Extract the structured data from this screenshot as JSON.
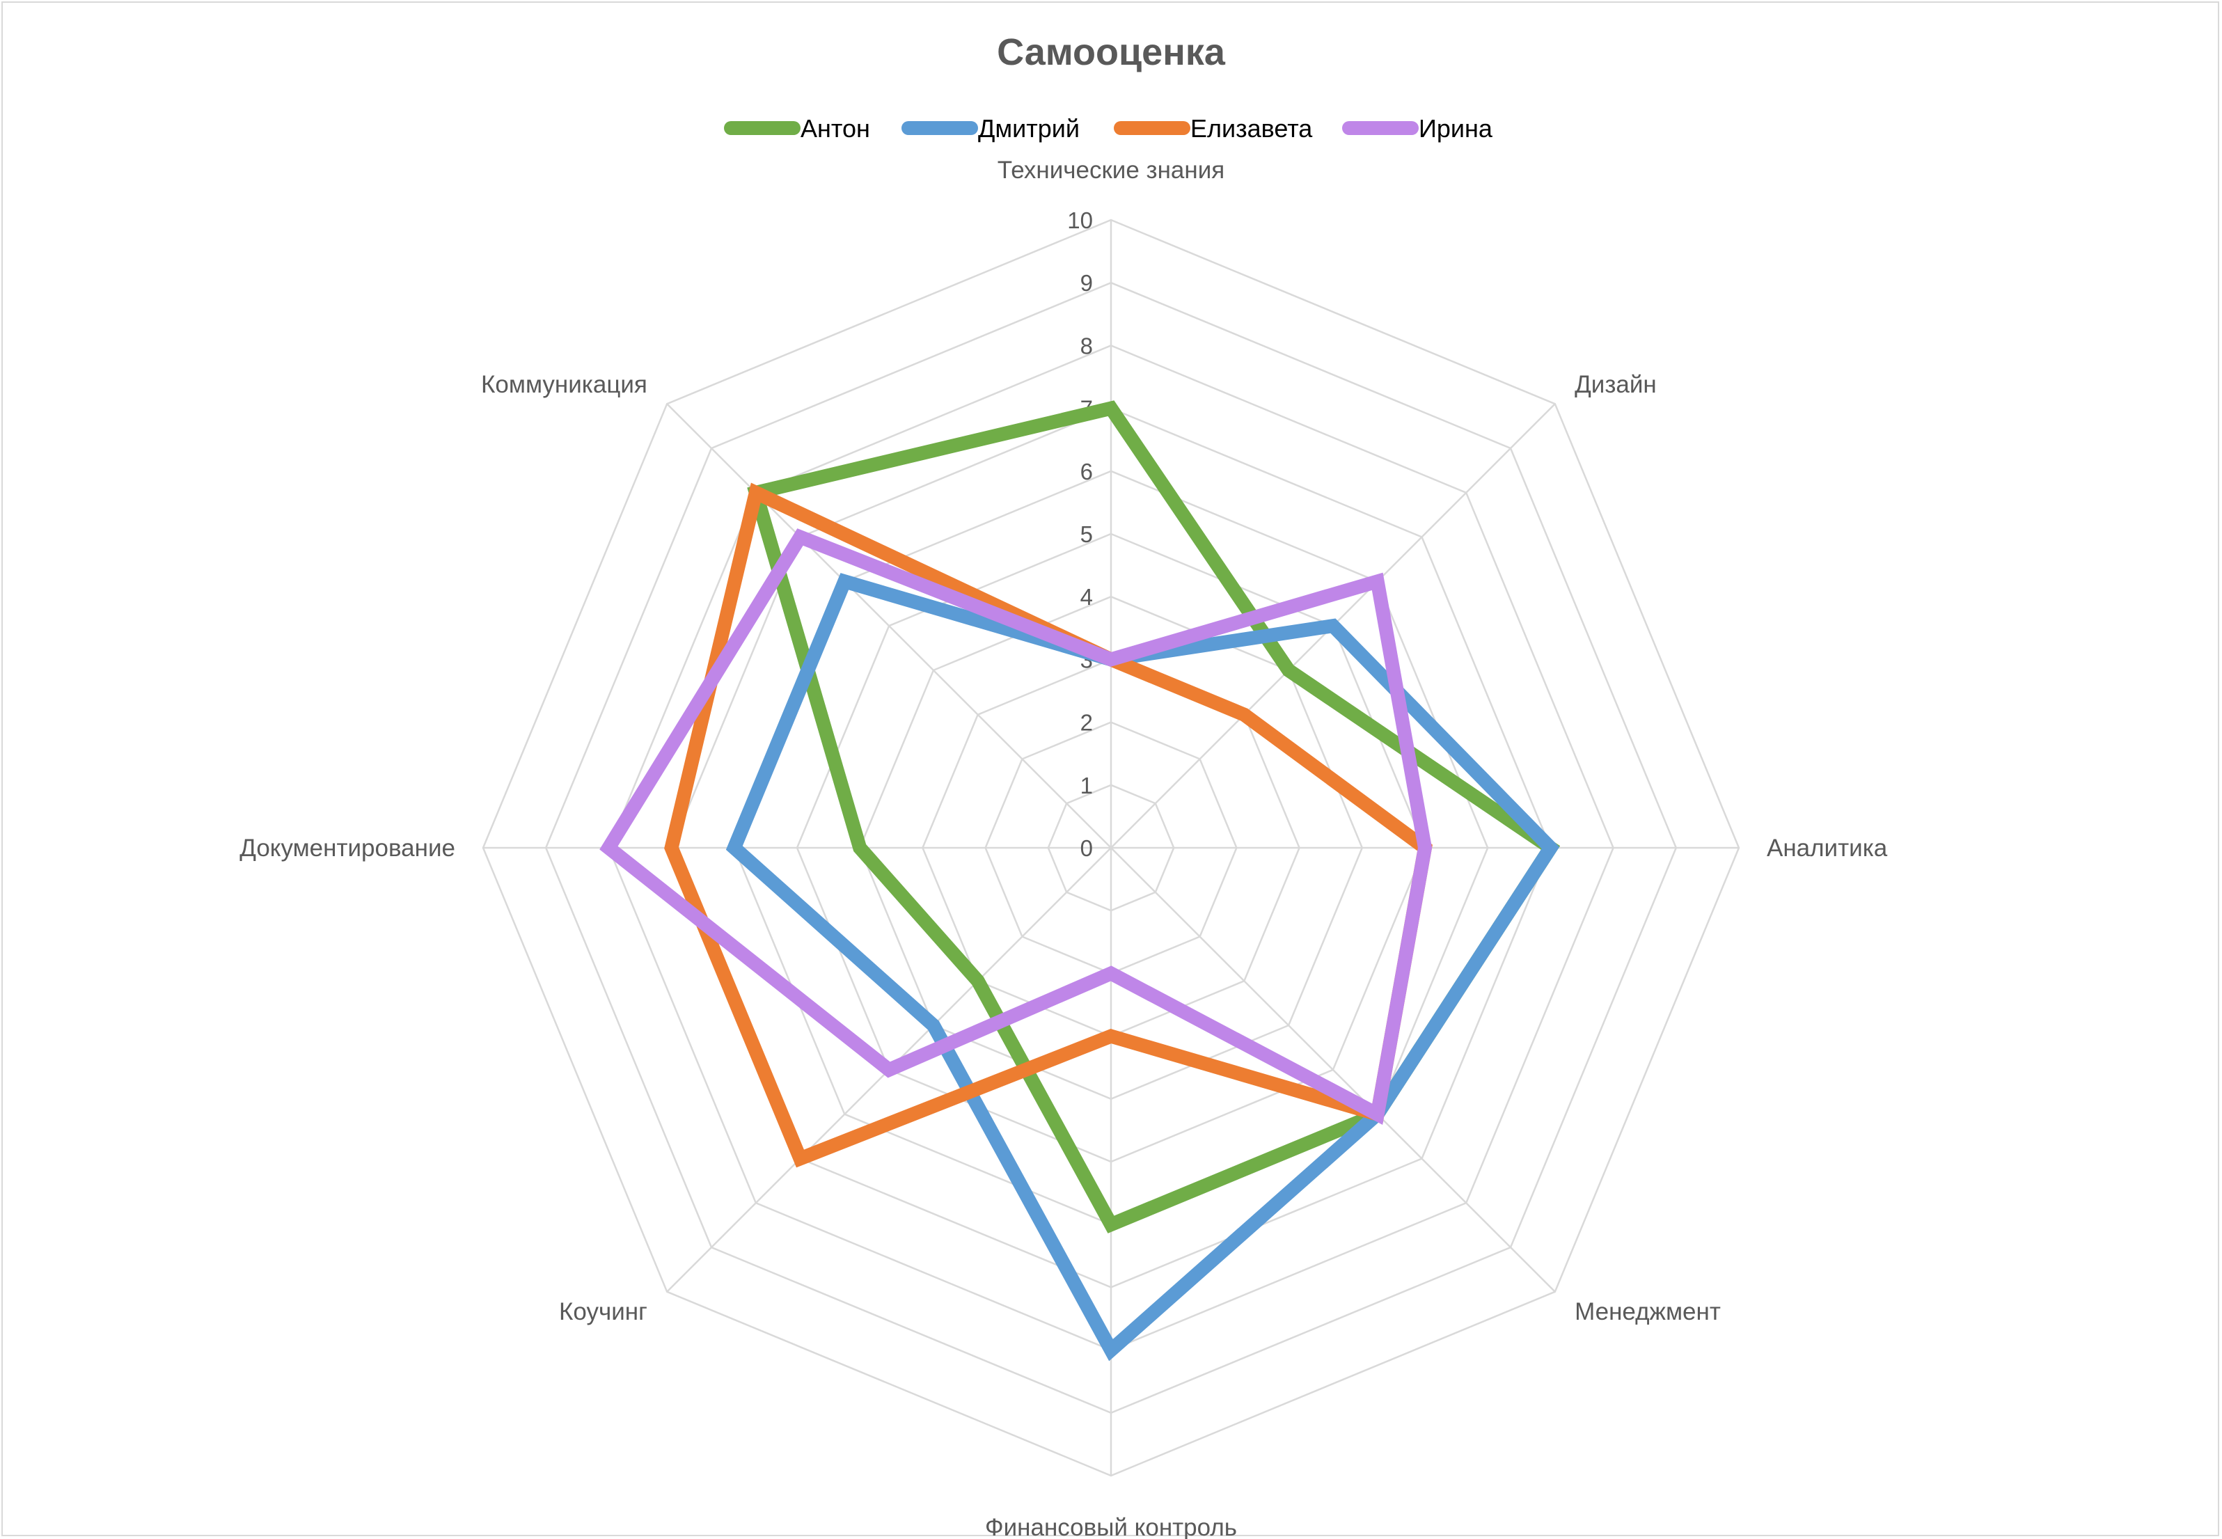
{
  "chart_data": {
    "type": "radar",
    "title": "Самооценка",
    "axes": [
      "Технические знания",
      "Дизайн",
      "Аналитика",
      "Менеджмент",
      "Финансовый контроль",
      "Коучинг",
      "Документирование",
      "Коммуникация"
    ],
    "ticks": [
      "0",
      "1",
      "2",
      "3",
      "4",
      "5",
      "6",
      "7",
      "8",
      "9",
      "10"
    ],
    "rlim": [
      0,
      10
    ],
    "grid": true,
    "legend_position": "top",
    "series": [
      {
        "name": "Антон",
        "color": "#70ad47",
        "values": [
          7,
          4,
          7,
          6,
          6,
          3,
          4,
          8
        ]
      },
      {
        "name": "Дмитрий",
        "color": "#5b9bd5",
        "values": [
          3,
          5,
          7,
          6,
          8,
          4,
          6,
          6
        ]
      },
      {
        "name": "Елизавета",
        "color": "#ed7d31",
        "values": [
          3,
          3,
          5,
          6,
          3,
          7,
          7,
          8
        ]
      },
      {
        "name": "Ирина",
        "color": "#bf86e8",
        "values": [
          3,
          6,
          5,
          6,
          2,
          5,
          8,
          7
        ]
      }
    ]
  }
}
